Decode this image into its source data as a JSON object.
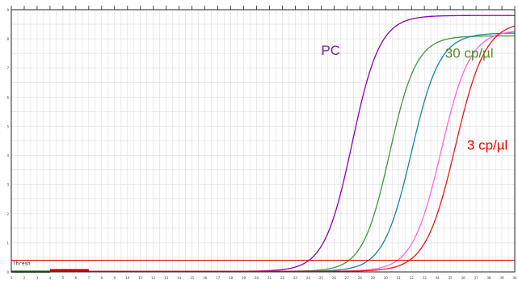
{
  "chart_data": {
    "type": "line",
    "title": "",
    "xlabel": "",
    "ylabel": "",
    "grid": true,
    "legend": "none",
    "xlim": [
      1,
      40
    ],
    "ylim": [
      0,
      9
    ],
    "x_ticks": [
      "1",
      "2",
      "3",
      "4",
      "5",
      "6",
      "7",
      "8",
      "9",
      "10",
      "11",
      "12",
      "13",
      "14",
      "15",
      "16",
      "17",
      "18",
      "19",
      "20",
      "21",
      "22",
      "23",
      "24",
      "25",
      "26",
      "27",
      "28",
      "29",
      "30",
      "31",
      "32",
      "33",
      "34",
      "35",
      "36",
      "37",
      "38",
      "39",
      "40"
    ],
    "y_ticks": [
      "0",
      "1",
      "2",
      "3",
      "4",
      "5",
      "6",
      "7",
      "8",
      "9"
    ],
    "threshold": {
      "label": "Thresh",
      "value": 0.4,
      "color": "#e00000"
    },
    "series": [
      {
        "color": "#8b00b0",
        "baseline": 0.02,
        "plateau": 8.8,
        "midpoint": 27.4,
        "slope": 0.29
      },
      {
        "color": "#3a9a3a",
        "baseline": 0.02,
        "plateau": 8.1,
        "midpoint": 30.3,
        "slope": 0.3
      },
      {
        "color": "#118a9a",
        "baseline": 0.02,
        "plateau": 8.2,
        "midpoint": 32.0,
        "slope": 0.285
      },
      {
        "color": "#ff66e0",
        "baseline": 0.02,
        "plateau": 8.3,
        "midpoint": 34.3,
        "slope": 0.28
      },
      {
        "color": "#e81818",
        "baseline": 0.02,
        "plateau": 8.6,
        "midpoint": 35.4,
        "slope": 0.27
      },
      {
        "color": "#c00000",
        "baseline": 0.06,
        "plateau": 0.06,
        "midpoint": 50,
        "slope": 0.1,
        "x_range": [
          4,
          7
        ]
      },
      {
        "color": "#1a6b1a",
        "baseline": 0.01,
        "plateau": 0.01,
        "midpoint": 50,
        "slope": 0.1,
        "x_range": [
          1,
          4
        ]
      }
    ],
    "annotations": [
      {
        "text": "PC",
        "color": "#7a1f9a",
        "x": 25.0,
        "y": 7.45
      },
      {
        "text": "30 cp/µl",
        "color": "#5a8a2a",
        "x": 34.6,
        "y": 7.35
      },
      {
        "text": "3 cp/µl",
        "color": "#e00000",
        "x": 36.3,
        "y": 4.2
      }
    ]
  }
}
